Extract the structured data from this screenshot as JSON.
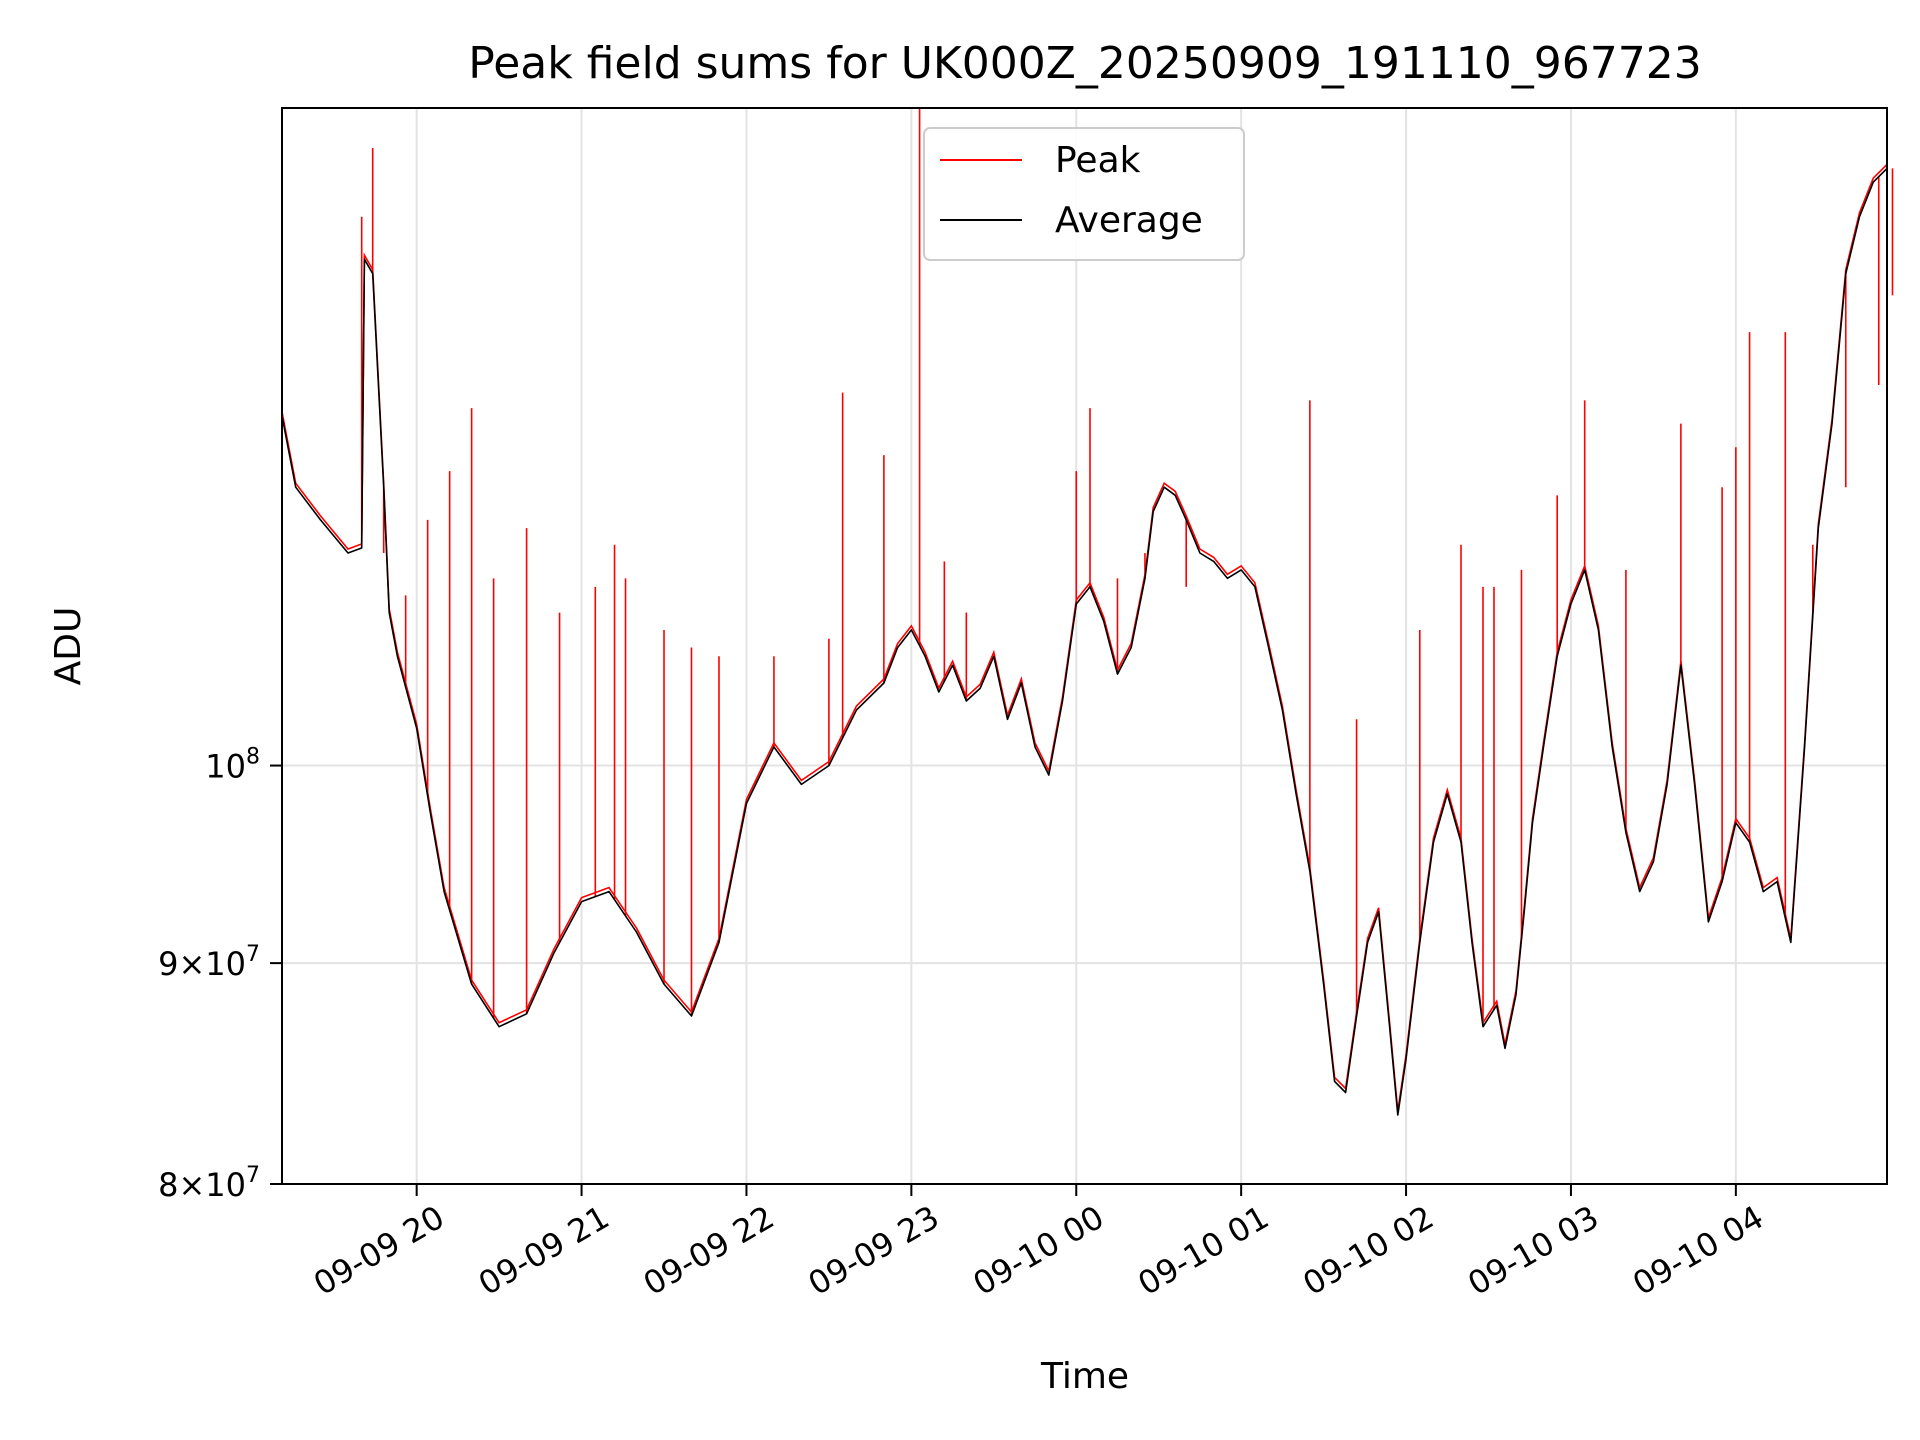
{
  "chart_data": {
    "type": "line",
    "title": "Peak field sums for UK000Z_20250909_191110_967723",
    "xlabel": "Time",
    "ylabel": "ADU",
    "y_scale": "log",
    "ylim": [
      80000000,
      142000000
    ],
    "xlim": [
      "2025-09-09 19:11",
      "2025-09-10 04:55"
    ],
    "grid": true,
    "legend_position": "top-center",
    "x_ticks": [
      {
        "t": "2025-09-09 20:00",
        "label": "09-09 20"
      },
      {
        "t": "2025-09-09 21:00",
        "label": "09-09 21"
      },
      {
        "t": "2025-09-09 22:00",
        "label": "09-09 22"
      },
      {
        "t": "2025-09-09 23:00",
        "label": "09-09 23"
      },
      {
        "t": "2025-09-10 00:00",
        "label": "09-10 00"
      },
      {
        "t": "2025-09-10 01:00",
        "label": "09-10 01"
      },
      {
        "t": "2025-09-10 02:00",
        "label": "09-10 02"
      },
      {
        "t": "2025-09-10 03:00",
        "label": "09-10 03"
      },
      {
        "t": "2025-09-10 04:00",
        "label": "09-10 04"
      }
    ],
    "y_ticks": [
      {
        "value": 80000000,
        "mant": "8",
        "exp": "7"
      },
      {
        "value": 90000000,
        "mant": "9",
        "exp": "7"
      },
      {
        "value": 100000000,
        "mant": "",
        "exp": "8"
      }
    ],
    "colors": {
      "Peak": "#ff0000",
      "Average": "#000000"
    },
    "series": [
      {
        "name": "Average",
        "points": [
          [
            "2025-09-09 19:11",
            120500000
          ],
          [
            "2025-09-09 19:16",
            116000000
          ],
          [
            "2025-09-09 19:25",
            114000000
          ],
          [
            "2025-09-09 19:35",
            112000000
          ],
          [
            "2025-09-09 19:40",
            112300000
          ],
          [
            "2025-09-09 19:41",
            131000000
          ],
          [
            "2025-09-09 19:44",
            130000000
          ],
          [
            "2025-09-09 19:48",
            116000000
          ],
          [
            "2025-09-09 19:50",
            108500000
          ],
          [
            "2025-09-09 19:53",
            106000000
          ],
          [
            "2025-09-09 20:00",
            102000000
          ],
          [
            "2025-09-09 20:05",
            97500000
          ],
          [
            "2025-09-09 20:10",
            93500000
          ],
          [
            "2025-09-09 20:20",
            89000000
          ],
          [
            "2025-09-09 20:30",
            87000000
          ],
          [
            "2025-09-09 20:40",
            87600000
          ],
          [
            "2025-09-09 20:50",
            90500000
          ],
          [
            "2025-09-09 21:00",
            93000000
          ],
          [
            "2025-09-09 21:10",
            93500000
          ],
          [
            "2025-09-09 21:20",
            91500000
          ],
          [
            "2025-09-09 21:30",
            89000000
          ],
          [
            "2025-09-09 21:40",
            87500000
          ],
          [
            "2025-09-09 21:50",
            91000000
          ],
          [
            "2025-09-09 22:00",
            98000000
          ],
          [
            "2025-09-09 22:10",
            101000000
          ],
          [
            "2025-09-09 22:20",
            99000000
          ],
          [
            "2025-09-09 22:30",
            100000000
          ],
          [
            "2025-09-09 22:40",
            103000000
          ],
          [
            "2025-09-09 22:50",
            104500000
          ],
          [
            "2025-09-09 22:55",
            106500000
          ],
          [
            "2025-09-09 23:00",
            107500000
          ],
          [
            "2025-09-09 23:05",
            106000000
          ],
          [
            "2025-09-09 23:10",
            104000000
          ],
          [
            "2025-09-09 23:15",
            105500000
          ],
          [
            "2025-09-09 23:20",
            103500000
          ],
          [
            "2025-09-09 23:25",
            104200000
          ],
          [
            "2025-09-09 23:30",
            106000000
          ],
          [
            "2025-09-09 23:35",
            102500000
          ],
          [
            "2025-09-09 23:40",
            104500000
          ],
          [
            "2025-09-09 23:45",
            101000000
          ],
          [
            "2025-09-09 23:50",
            99500000
          ],
          [
            "2025-09-09 23:55",
            103500000
          ],
          [
            "2025-09-10 00:00",
            109000000
          ],
          [
            "2025-09-10 00:05",
            110000000
          ],
          [
            "2025-09-10 00:10",
            108000000
          ],
          [
            "2025-09-10 00:15",
            105000000
          ],
          [
            "2025-09-10 00:20",
            106500000
          ],
          [
            "2025-09-10 00:25",
            110500000
          ],
          [
            "2025-09-10 00:28",
            114500000
          ],
          [
            "2025-09-10 00:32",
            116000000
          ],
          [
            "2025-09-10 00:36",
            115500000
          ],
          [
            "2025-09-10 00:40",
            114000000
          ],
          [
            "2025-09-10 00:45",
            112000000
          ],
          [
            "2025-09-10 00:50",
            111500000
          ],
          [
            "2025-09-10 00:55",
            110500000
          ],
          [
            "2025-09-10 01:00",
            111000000
          ],
          [
            "2025-09-10 01:05",
            110000000
          ],
          [
            "2025-09-10 01:10",
            106500000
          ],
          [
            "2025-09-10 01:15",
            103000000
          ],
          [
            "2025-09-10 01:20",
            98500000
          ],
          [
            "2025-09-10 01:25",
            94500000
          ],
          [
            "2025-09-10 01:30",
            89000000
          ],
          [
            "2025-09-10 01:34",
            84500000
          ],
          [
            "2025-09-10 01:38",
            84000000
          ],
          [
            "2025-09-10 01:42",
            87500000
          ],
          [
            "2025-09-10 01:46",
            91000000
          ],
          [
            "2025-09-10 01:50",
            92500000
          ],
          [
            "2025-09-10 01:54",
            87000000
          ],
          [
            "2025-09-10 01:57",
            83000000
          ],
          [
            "2025-09-10 02:00",
            85500000
          ],
          [
            "2025-09-10 02:05",
            91000000
          ],
          [
            "2025-09-10 02:10",
            96000000
          ],
          [
            "2025-09-10 02:15",
            98500000
          ],
          [
            "2025-09-10 02:20",
            96000000
          ],
          [
            "2025-09-10 02:24",
            91000000
          ],
          [
            "2025-09-10 02:28",
            87000000
          ],
          [
            "2025-09-10 02:33",
            88000000
          ],
          [
            "2025-09-10 02:36",
            86000000
          ],
          [
            "2025-09-10 02:40",
            88500000
          ],
          [
            "2025-09-10 02:43",
            92500000
          ],
          [
            "2025-09-10 02:46",
            97000000
          ],
          [
            "2025-09-10 02:50",
            101000000
          ],
          [
            "2025-09-10 02:55",
            106000000
          ],
          [
            "2025-09-10 03:00",
            109000000
          ],
          [
            "2025-09-10 03:05",
            111000000
          ],
          [
            "2025-09-10 03:10",
            107500000
          ],
          [
            "2025-09-10 03:15",
            101000000
          ],
          [
            "2025-09-10 03:20",
            96500000
          ],
          [
            "2025-09-10 03:25",
            93500000
          ],
          [
            "2025-09-10 03:30",
            95000000
          ],
          [
            "2025-09-10 03:35",
            99000000
          ],
          [
            "2025-09-10 03:40",
            105500000
          ],
          [
            "2025-09-10 03:45",
            99000000
          ],
          [
            "2025-09-10 03:50",
            92000000
          ],
          [
            "2025-09-10 03:55",
            94000000
          ],
          [
            "2025-09-10 04:00",
            97000000
          ],
          [
            "2025-09-10 04:05",
            96000000
          ],
          [
            "2025-09-10 04:10",
            93500000
          ],
          [
            "2025-09-10 04:15",
            94000000
          ],
          [
            "2025-09-10 04:20",
            91000000
          ],
          [
            "2025-09-10 04:25",
            101000000
          ],
          [
            "2025-09-10 04:30",
            113500000
          ],
          [
            "2025-09-10 04:35",
            120000000
          ],
          [
            "2025-09-10 04:40",
            130000000
          ],
          [
            "2025-09-10 04:45",
            134000000
          ],
          [
            "2025-09-10 04:50",
            136500000
          ],
          [
            "2025-09-10 04:55",
            137500000
          ]
        ]
      },
      {
        "name": "Peak",
        "spikes": [
          [
            "2025-09-09 19:40",
            134000000
          ],
          [
            "2025-09-09 19:44",
            139000000
          ],
          [
            "2025-09-09 19:48",
            112000000
          ],
          [
            "2025-09-09 19:56",
            109500000
          ],
          [
            "2025-09-09 20:04",
            114000000
          ],
          [
            "2025-09-09 20:12",
            117000000
          ],
          [
            "2025-09-09 20:20",
            121000000
          ],
          [
            "2025-09-09 20:28",
            110500000
          ],
          [
            "2025-09-09 20:40",
            113500000
          ],
          [
            "2025-09-09 20:52",
            108500000
          ],
          [
            "2025-09-09 21:05",
            110000000
          ],
          [
            "2025-09-09 21:12",
            112500000
          ],
          [
            "2025-09-09 21:16",
            110500000
          ],
          [
            "2025-09-09 21:30",
            107500000
          ],
          [
            "2025-09-09 21:40",
            106500000
          ],
          [
            "2025-09-09 21:50",
            106000000
          ],
          [
            "2025-09-09 22:10",
            106000000
          ],
          [
            "2025-09-09 22:30",
            107000000
          ],
          [
            "2025-09-09 22:35",
            122000000
          ],
          [
            "2025-09-09 22:50",
            118000000
          ],
          [
            "2025-09-09 23:03",
            142000000
          ],
          [
            "2025-09-09 23:12",
            111500000
          ],
          [
            "2025-09-09 23:20",
            108500000
          ],
          [
            "2025-09-10 00:00",
            117000000
          ],
          [
            "2025-09-10 00:05",
            121000000
          ],
          [
            "2025-09-10 00:15",
            110500000
          ],
          [
            "2025-09-10 00:25",
            112000000
          ],
          [
            "2025-09-10 00:40",
            110000000
          ],
          [
            "2025-09-10 01:25",
            121500000
          ],
          [
            "2025-09-10 01:42",
            102500000
          ],
          [
            "2025-09-10 02:05",
            107500000
          ],
          [
            "2025-09-10 02:20",
            112500000
          ],
          [
            "2025-09-10 02:28",
            110000000
          ],
          [
            "2025-09-10 02:32",
            110000000
          ],
          [
            "2025-09-10 02:42",
            111000000
          ],
          [
            "2025-09-10 02:55",
            115500000
          ],
          [
            "2025-09-10 03:05",
            121500000
          ],
          [
            "2025-09-10 03:20",
            111000000
          ],
          [
            "2025-09-10 03:40",
            120000000
          ],
          [
            "2025-09-10 03:55",
            116000000
          ],
          [
            "2025-09-10 04:00",
            118500000
          ],
          [
            "2025-09-10 04:05",
            126000000
          ],
          [
            "2025-09-10 04:18",
            126000000
          ],
          [
            "2025-09-10 04:28",
            112500000
          ],
          [
            "2025-09-10 04:40",
            116000000
          ],
          [
            "2025-09-10 04:52",
            122500000
          ],
          [
            "2025-09-10 04:57",
            128500000
          ]
        ]
      }
    ]
  }
}
